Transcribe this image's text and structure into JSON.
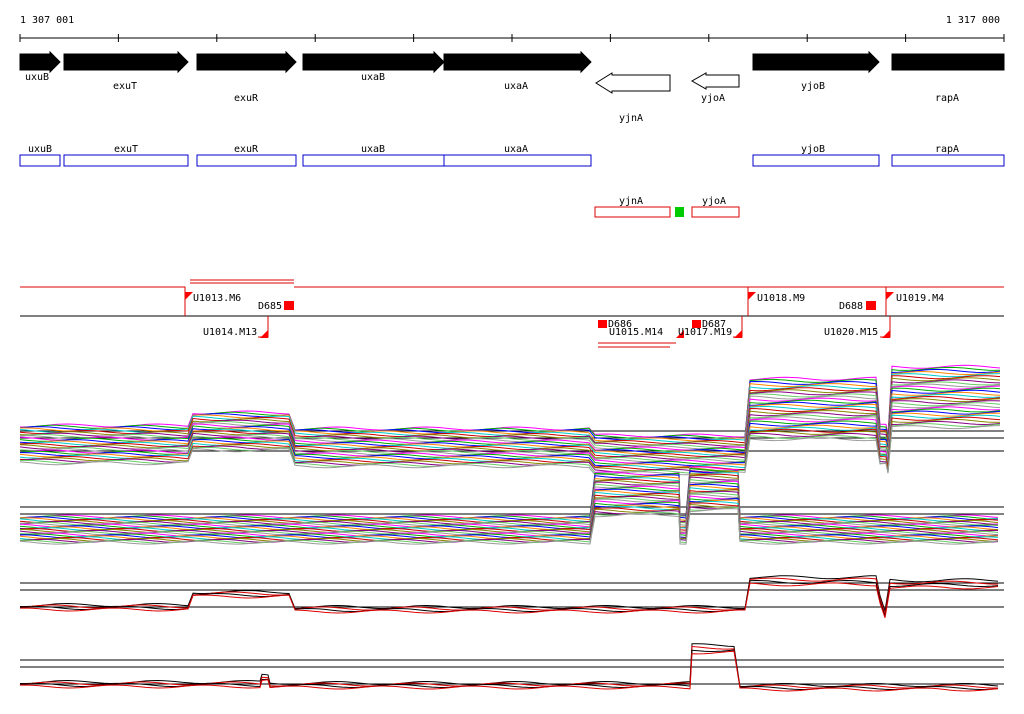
{
  "ruler": {
    "start": "1 307 001",
    "end": "1 317 000"
  },
  "genes": [
    "uxuB",
    "exuT",
    "exuR",
    "uxaB",
    "uxaA",
    "yjnA",
    "yjoA",
    "yjoB",
    "rapA"
  ],
  "gene_boxes": [
    "uxuB",
    "exuT",
    "exuR",
    "uxaB",
    "uxaA",
    "yjoB",
    "rapA"
  ],
  "rna_boxes": [
    "yjnA",
    "yjoA"
  ],
  "features": [
    "U1013.M6",
    "D685",
    "U1014.M13",
    "D686",
    "U1015.M14",
    "U1017.M19",
    "D687",
    "U1018.M9",
    "D688",
    "U1019.M4",
    "U1020.M15"
  ]
}
